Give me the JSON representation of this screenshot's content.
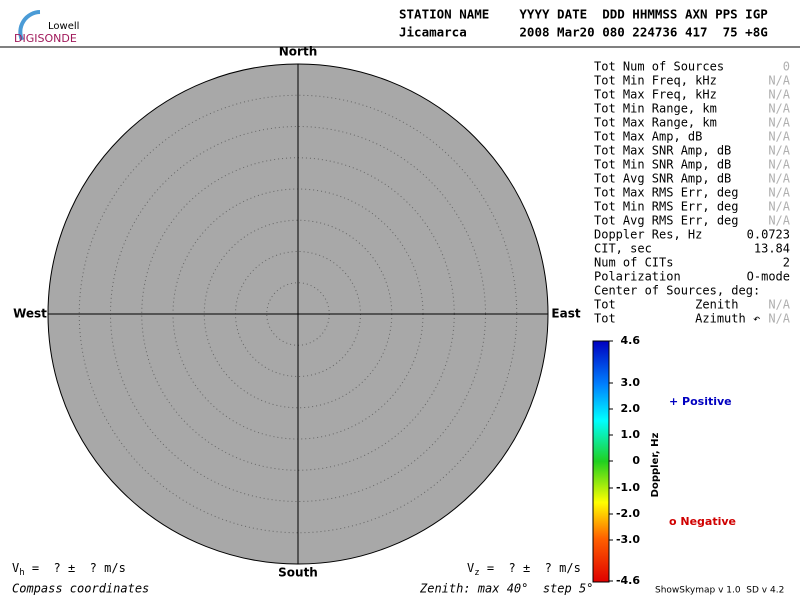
{
  "logo": {
    "top": "Lowell",
    "bottom": "DIGISONDE"
  },
  "header": {
    "columns": "STATION NAME    YYYY DATE  DDD HHMMSS AXN PPS IGP",
    "values": "Jicamarca       2008 Mar20 080 224736 417  75 +8G"
  },
  "compass": {
    "north": "North",
    "south": "South",
    "west": "West",
    "east": "East"
  },
  "stats": [
    {
      "label": "Tot Num of Sources",
      "value": "0",
      "muted": true
    },
    {
      "label": "Tot Min Freq, kHz",
      "value": "N/A",
      "muted": true
    },
    {
      "label": "Tot Max Freq, kHz",
      "value": "N/A",
      "muted": true
    },
    {
      "label": "Tot Min Range, km",
      "value": "N/A",
      "muted": true
    },
    {
      "label": "Tot Max Range, km",
      "value": "N/A",
      "muted": true
    },
    {
      "label": "Tot Max Amp, dB",
      "value": "N/A",
      "muted": true
    },
    {
      "label": "Tot Max SNR Amp, dB",
      "value": "N/A",
      "muted": true
    },
    {
      "label": "Tot Min SNR Amp, dB",
      "value": "N/A",
      "muted": true
    },
    {
      "label": "Tot Avg SNR Amp, dB",
      "value": "N/A",
      "muted": true
    },
    {
      "label": "Tot Max RMS Err, deg",
      "value": "N/A",
      "muted": true
    },
    {
      "label": "Tot Min RMS Err, deg",
      "value": "N/A",
      "muted": true
    },
    {
      "label": "Tot Avg RMS Err, deg",
      "value": "N/A",
      "muted": true
    },
    {
      "label": "Doppler Res, Hz",
      "value": "0.0723",
      "muted": false
    },
    {
      "label": "CIT, sec",
      "value": "13.84",
      "muted": false
    },
    {
      "label": "Num of CITs",
      "value": "2",
      "muted": false
    },
    {
      "label": "Polarization",
      "value": "O-mode",
      "muted": false
    },
    {
      "label": "Center of Sources, deg:",
      "value": null,
      "muted": false
    },
    {
      "label": "Tot           Zenith",
      "value": "N/A",
      "muted": true
    },
    {
      "label": "Tot           Azimuth ↶",
      "value": "N/A",
      "muted": true
    }
  ],
  "colorbar": {
    "title": "Doppler, Hz",
    "ticks": [
      "4.6",
      "3.0",
      "2.0",
      "1.0",
      "0",
      "-1.0",
      "-2.0",
      "-3.0",
      "-4.6"
    ]
  },
  "legend": {
    "positive": "+ Positive",
    "negative": "o Negative"
  },
  "velocity": {
    "vh": {
      "symbol": "V",
      "subscript": "h",
      "text": " =  ? ±  ? m/s"
    },
    "vz": {
      "symbol": "V",
      "subscript": "z",
      "text": " =  ? ±  ? m/s"
    }
  },
  "footer": {
    "coordinates": "Compass coordinates",
    "zenith": "Zenith: max 40°  step 5°",
    "version": "ShowSkymap v 1.0  SD v 4.2"
  }
}
